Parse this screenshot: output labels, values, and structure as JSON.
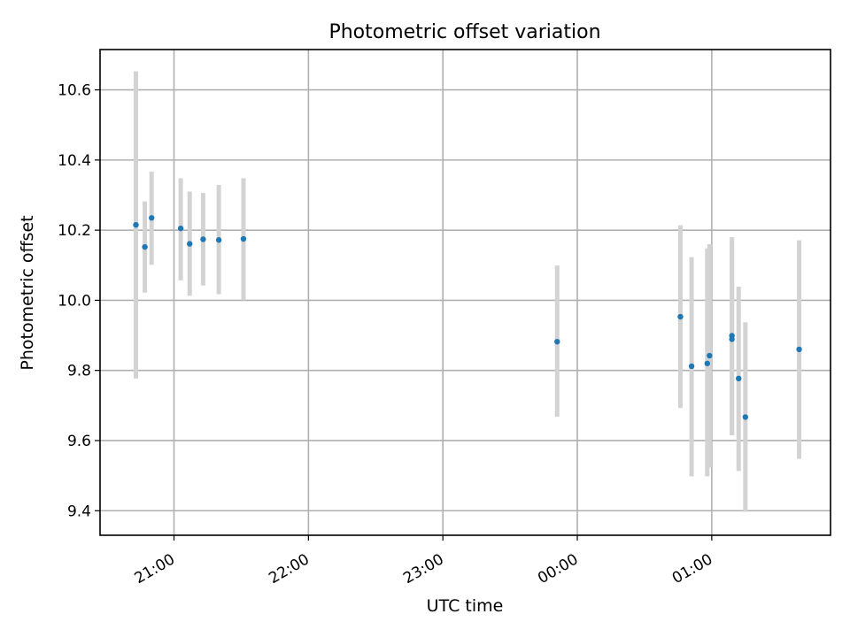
{
  "chart_data": {
    "type": "scatter",
    "title": "Photometric offset variation",
    "xlabel": "UTC time",
    "ylabel": "Photometric offset",
    "x_axis_kind": "time",
    "x_ticks": [
      "21:00",
      "22:00",
      "23:00",
      "00:00",
      "01:00"
    ],
    "y_ticks": [
      "9.4",
      "9.6",
      "9.8",
      "10.0",
      "10.2",
      "10.4",
      "10.6"
    ],
    "xlim": [
      "20:27",
      "01:53"
    ],
    "ylim": [
      9.33,
      10.715
    ],
    "grid": true,
    "point_color": "#1f77b4",
    "errorbar_color": "#d3d3d3",
    "points": [
      {
        "time": "20:43",
        "offset": 10.215,
        "err_low": 9.777,
        "err_high": 10.653
      },
      {
        "time": "20:47",
        "offset": 10.152,
        "err_low": 10.022,
        "err_high": 10.282
      },
      {
        "time": "20:50",
        "offset": 10.235,
        "err_low": 10.101,
        "err_high": 10.367
      },
      {
        "time": "21:03",
        "offset": 10.205,
        "err_low": 10.057,
        "err_high": 10.348
      },
      {
        "time": "21:07",
        "offset": 10.161,
        "err_low": 10.013,
        "err_high": 10.31
      },
      {
        "time": "21:13",
        "offset": 10.174,
        "err_low": 10.042,
        "err_high": 10.306
      },
      {
        "time": "21:20",
        "offset": 10.172,
        "err_low": 10.017,
        "err_high": 10.329
      },
      {
        "time": "21:31",
        "offset": 10.175,
        "err_low": 10.0,
        "err_high": 10.348
      },
      {
        "time": "23:51",
        "offset": 9.882,
        "err_low": 9.668,
        "err_high": 10.099
      },
      {
        "time": "00:46",
        "offset": 9.953,
        "err_low": 9.693,
        "err_high": 10.214
      },
      {
        "time": "00:51",
        "offset": 9.812,
        "err_low": 9.498,
        "err_high": 10.123
      },
      {
        "time": "00:58",
        "offset": 9.82,
        "err_low": 9.498,
        "err_high": 10.148
      },
      {
        "time": "00:59",
        "offset": 9.842,
        "err_low": 9.523,
        "err_high": 10.16
      },
      {
        "time": "01:09",
        "offset": 9.899,
        "err_low": 9.615,
        "err_high": 10.18
      },
      {
        "time": "01:09",
        "offset": 9.889,
        "err_low": 9.615,
        "err_high": 10.167
      },
      {
        "time": "01:12",
        "offset": 9.777,
        "err_low": 9.513,
        "err_high": 10.039
      },
      {
        "time": "01:15",
        "offset": 9.667,
        "err_low": 9.397,
        "err_high": 9.937
      },
      {
        "time": "01:39",
        "offset": 9.86,
        "err_low": 9.548,
        "err_high": 10.171
      }
    ]
  }
}
